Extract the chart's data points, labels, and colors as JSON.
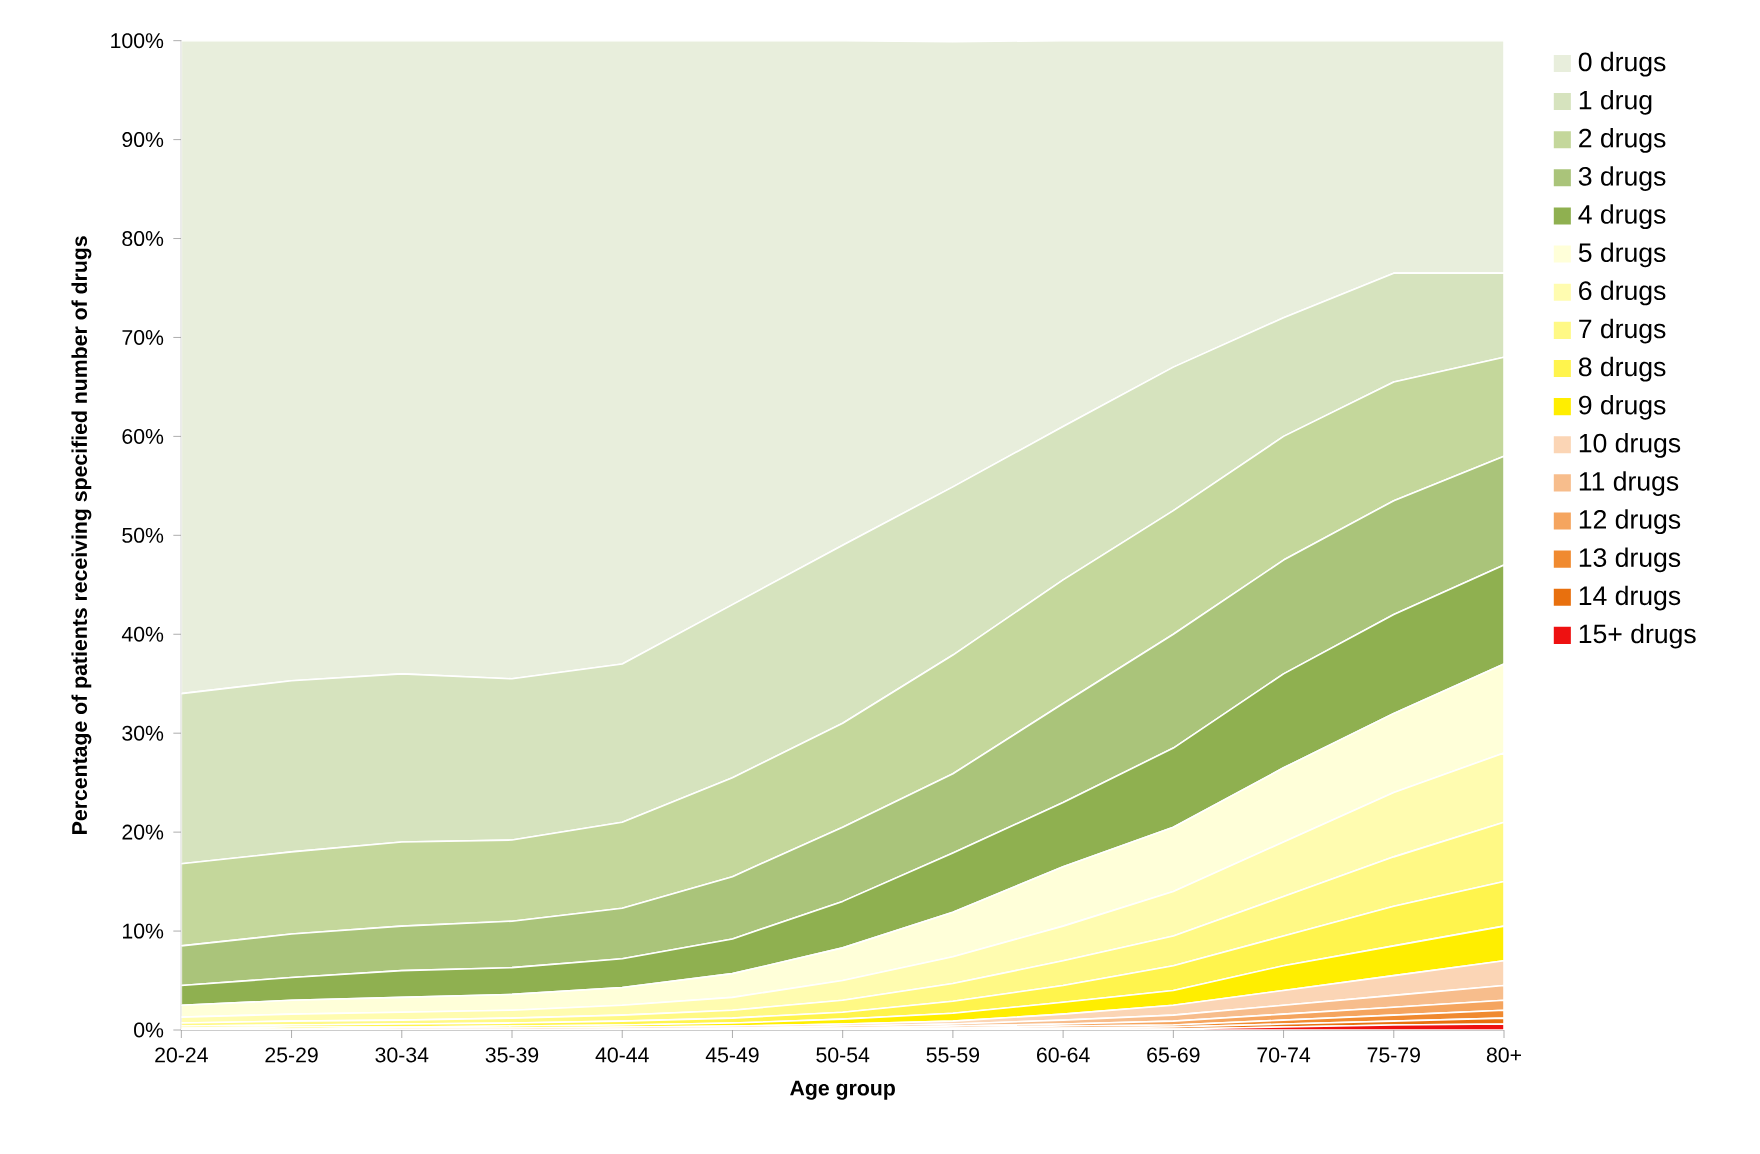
{
  "chart_data": {
    "type": "area",
    "stacked": true,
    "xlabel": "Age group",
    "ylabel": "Percentage of patients receiving specified number of drugs",
    "categories": [
      "20-24",
      "25-29",
      "30-34",
      "35-39",
      "40-44",
      "45-49",
      "50-54",
      "55-59",
      "60-64",
      "65-69",
      "70-74",
      "75-79",
      "80+"
    ],
    "ylim": [
      0,
      100
    ],
    "yticks": [
      {
        "value": 0,
        "label": "0%"
      },
      {
        "value": 10,
        "label": "10%"
      },
      {
        "value": 20,
        "label": "20%"
      },
      {
        "value": 30,
        "label": "30%"
      },
      {
        "value": 40,
        "label": "40%"
      },
      {
        "value": 50,
        "label": "50%"
      },
      {
        "value": 60,
        "label": "60%"
      },
      {
        "value": 70,
        "label": "70%"
      },
      {
        "value": 80,
        "label": "80%"
      },
      {
        "value": 90,
        "label": "90%"
      },
      {
        "value": 100,
        "label": "100%"
      }
    ],
    "grid": false,
    "legend": "right",
    "series": [
      {
        "name": "15+ drugs",
        "color": "#ee1111",
        "values": [
          0,
          0,
          0,
          0,
          0,
          0,
          0,
          0,
          0.1,
          0.1,
          0.3,
          0.5,
          0.6
        ]
      },
      {
        "name": "14 drugs",
        "color": "#e8700e",
        "values": [
          0,
          0,
          0,
          0,
          0,
          0,
          0,
          0.1,
          0.1,
          0.2,
          0.3,
          0.4,
          0.6
        ]
      },
      {
        "name": "13 drugs",
        "color": "#f08a30",
        "values": [
          0,
          0,
          0,
          0,
          0,
          0,
          0.1,
          0.1,
          0.2,
          0.2,
          0.4,
          0.6,
          0.8
        ]
      },
      {
        "name": "12 drugs",
        "color": "#f5a55f",
        "values": [
          0,
          0,
          0,
          0,
          0,
          0.1,
          0.1,
          0.2,
          0.2,
          0.4,
          0.6,
          0.8,
          1
        ]
      },
      {
        "name": "11 drugs",
        "color": "#f7bd8c",
        "values": [
          0,
          0,
          0,
          0,
          0.1,
          0.1,
          0.2,
          0.2,
          0.4,
          0.6,
          0.9,
          1.2,
          1.5
        ]
      },
      {
        "name": "10 drugs",
        "color": "#fbd5b5",
        "values": [
          0.1,
          0.1,
          0.2,
          0.2,
          0.2,
          0.2,
          0.2,
          0.3,
          0.6,
          1,
          1.5,
          2,
          2.5
        ]
      },
      {
        "name": "9 drugs",
        "color": "#ffee00",
        "values": [
          0.1,
          0.2,
          0.1,
          0.2,
          0.2,
          0.3,
          0.5,
          0.8,
          1.2,
          1.5,
          2.5,
          3,
          3.5
        ]
      },
      {
        "name": "8 drugs",
        "color": "#fff44d",
        "values": [
          0.2,
          0.2,
          0.3,
          0.3,
          0.4,
          0.5,
          0.7,
          1.2,
          1.7,
          2.5,
          3,
          4,
          4.5
        ]
      },
      {
        "name": "7 drugs",
        "color": "#fff985",
        "values": [
          0.3,
          0.4,
          0.4,
          0.5,
          0.6,
          0.8,
          1.2,
          1.8,
          2.5,
          3,
          4,
          5,
          6
        ]
      },
      {
        "name": "6 drugs",
        "color": "#fffcb0",
        "values": [
          0.6,
          0.7,
          0.8,
          0.8,
          1,
          1.3,
          2,
          2.7,
          3.5,
          4.5,
          5.5,
          6.5,
          7
        ]
      },
      {
        "name": "5 drugs",
        "color": "#ffffd9",
        "values": [
          1.2,
          1.4,
          1.5,
          1.6,
          1.8,
          2.4,
          3.3,
          4.5,
          6,
          6.5,
          7.5,
          8,
          9
        ]
      },
      {
        "name": "4 drugs",
        "color": "#8fb050",
        "values": [
          2,
          2.3,
          2.7,
          2.7,
          2.9,
          3.5,
          4.7,
          6,
          6.5,
          8,
          9.5,
          10,
          10
        ]
      },
      {
        "name": "3 drugs",
        "color": "#aac47a",
        "values": [
          4,
          4.4,
          4.5,
          4.7,
          5.1,
          6.3,
          7.5,
          8,
          10,
          11.5,
          11.5,
          11.5,
          11
        ]
      },
      {
        "name": "2 drugs",
        "color": "#c4d79b",
        "values": [
          8.3,
          8.3,
          8.5,
          8.2,
          8.7,
          10,
          10.5,
          12,
          12.5,
          12.5,
          12.5,
          12,
          10
        ]
      },
      {
        "name": "1 drug",
        "color": "#d6e3be",
        "values": [
          17.2,
          17.3,
          17,
          16.3,
          16,
          17.5,
          18,
          17,
          15.5,
          14.5,
          12,
          11,
          8.5
        ]
      },
      {
        "name": "0 drugs",
        "color": "#e8eedc",
        "values": [
          66,
          64.7,
          64,
          64.5,
          63,
          57,
          51,
          45,
          39,
          33,
          28,
          23.5,
          23.5
        ]
      }
    ]
  }
}
